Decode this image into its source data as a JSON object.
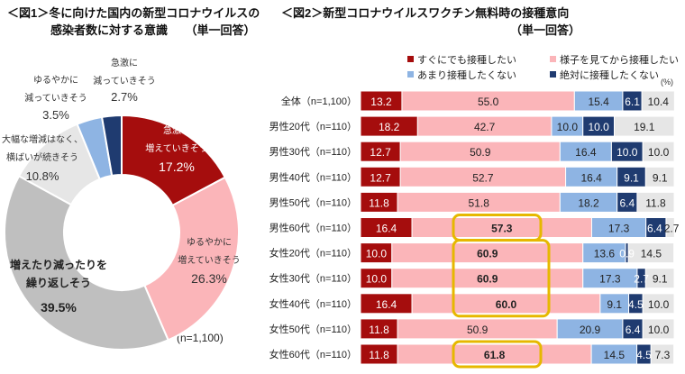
{
  "fig1": {
    "title_line1": "＜図1＞冬に向けた国内の新型コロナウイルスの",
    "title_line2": "感染者数に対する意識　　（単一回答）",
    "note": "(n=1,100)"
  },
  "fig2": {
    "title_line1": "＜図2＞新型コロナウイルスワクチン無料時の接種意向",
    "title_line2": "（単一回答）",
    "unit": "(%)"
  },
  "chart_data": [
    {
      "type": "pie",
      "donut": true,
      "start": "top, clockwise",
      "slices": [
        {
          "label": "急激に\n増えていきそう",
          "value": 17.2,
          "value_label": "17.2%",
          "color": "#a50d0d"
        },
        {
          "label": "ゆるやかに\n増えていきそう",
          "value": 26.3,
          "value_label": "26.3%",
          "color": "#fbb5b9"
        },
        {
          "label": "増えたり減ったりを\n繰り返しそう",
          "value": 39.5,
          "value_label": "39.5%",
          "color": "#bfbfbf"
        },
        {
          "label": "大幅な増減はなく、\n横ばいが続きそう",
          "value": 10.8,
          "value_label": "10.8%",
          "color": "#e6e6e6"
        },
        {
          "label": "ゆるやかに\n減っていきそう",
          "value": 3.5,
          "value_label": "3.5%",
          "color": "#8eb4e3"
        },
        {
          "label": "急激に\n減っていきそう",
          "value": 2.7,
          "value_label": "2.7%",
          "color": "#1f3b70"
        }
      ]
    },
    {
      "type": "bar",
      "orientation": "horizontal",
      "stacked": true,
      "xlim": [
        0,
        100
      ],
      "legend_position": "top",
      "categories": [
        "全体（n=1,100）",
        "男性20代（n=110）",
        "男性30代（n=110）",
        "男性40代（n=110）",
        "男性50代（n=110）",
        "男性60代（n=110）",
        "女性20代（n=110）",
        "女性30代（n=110）",
        "女性40代（n=110）",
        "女性50代（n=110）",
        "女性60代（n=110）"
      ],
      "series": [
        {
          "name": "すぐにでも接種したい",
          "color": "#a50d0d",
          "values": [
            13.2,
            18.2,
            12.7,
            12.7,
            11.8,
            16.4,
            10.0,
            10.0,
            16.4,
            11.8,
            11.8
          ]
        },
        {
          "name": "様子を見てから接種したい",
          "color": "#fbb5b9",
          "values": [
            55.0,
            42.7,
            50.9,
            52.7,
            51.8,
            57.3,
            60.9,
            60.9,
            60.0,
            50.9,
            61.8
          ]
        },
        {
          "name": "あまり接種したくない",
          "color": "#8eb4e3",
          "values": [
            15.4,
            10.0,
            16.4,
            16.4,
            18.2,
            17.3,
            13.6,
            17.3,
            9.1,
            20.9,
            14.5
          ]
        },
        {
          "name": "絶対に接種したくない",
          "color": "#1f3b70",
          "values": [
            6.1,
            10.0,
            10.0,
            9.1,
            6.4,
            6.4,
            0.9,
            2.7,
            4.5,
            6.4,
            4.5
          ]
        },
        {
          "name": "",
          "color": "#e6e6e6",
          "values": [
            10.4,
            19.1,
            10.0,
            9.1,
            11.8,
            2.7,
            14.5,
            9.1,
            10.0,
            10.0,
            7.3
          ]
        }
      ],
      "highlighted": [
        [
          5,
          1
        ],
        [
          6,
          1
        ],
        [
          7,
          1
        ],
        [
          8,
          1
        ],
        [
          10,
          1
        ]
      ],
      "highlight_color": "#e6b800"
    }
  ]
}
